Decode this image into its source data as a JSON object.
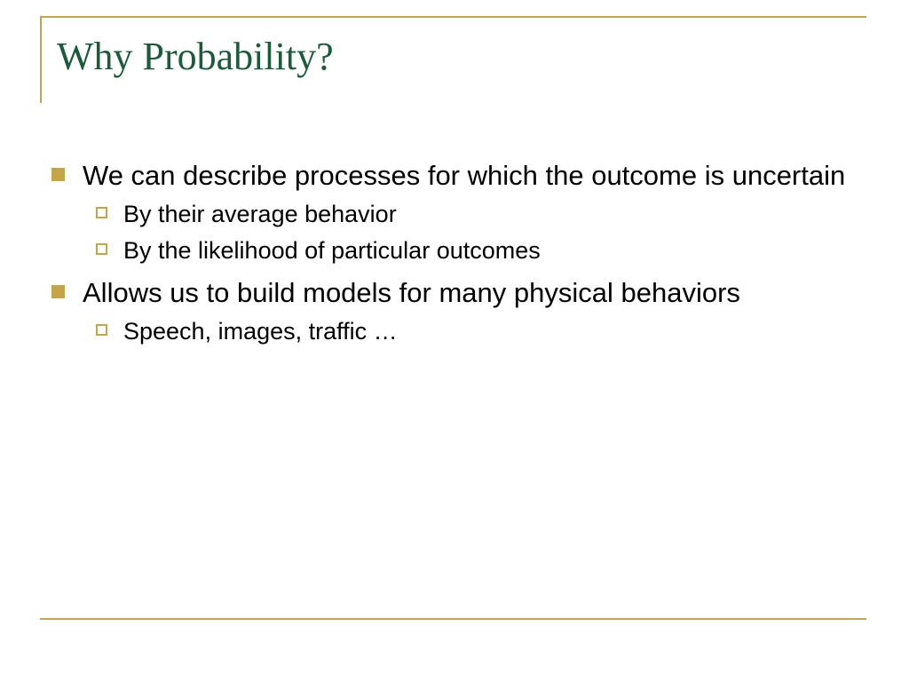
{
  "slide": {
    "title": "Why Probability?",
    "bullets": [
      {
        "level": 1,
        "text": "We can describe processes for which the outcome is uncertain"
      },
      {
        "level": 2,
        "text": "By their average behavior"
      },
      {
        "level": 2,
        "text": "By the likelihood of particular outcomes"
      },
      {
        "level": 1,
        "text": "Allows us to build models for many physical behaviors"
      },
      {
        "level": 2,
        "text": "Speech, images, traffic …"
      }
    ],
    "styling": {
      "title_color": "#1a5c3a",
      "title_fontsize": 44,
      "title_font": "Garamond",
      "accent_color": "#c4a547",
      "body_color": "#000000",
      "body_fontsize_l1": 31,
      "body_fontsize_l2": 27,
      "body_font": "Arial",
      "background_color": "#ffffff",
      "bullet_l1_style": "filled-square",
      "bullet_l2_style": "outline-square"
    }
  }
}
